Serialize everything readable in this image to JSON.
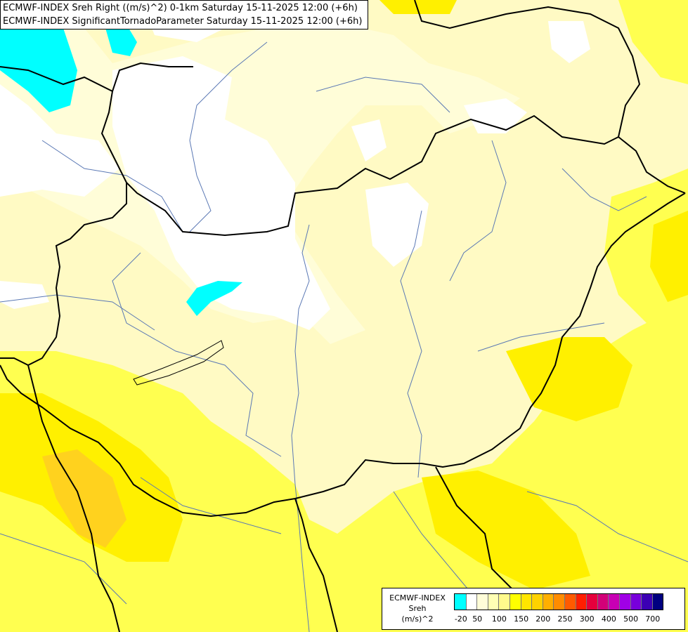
{
  "header": {
    "line1": "ECMWF-INDEX Sreh Right ((m/s)^2) 0-1km Saturday 15-11-2025 12:00 (+6h)",
    "line2": "ECMWF-INDEX SignificantTornadoParameter Saturday 15-11-2025 12:00 (+6h)"
  },
  "legend": {
    "title_line1": "ECMWF-INDEX",
    "title_line2": "Sreh",
    "title_line3": "(m/s)^2",
    "colors": [
      "#00ffff",
      "#ffffff",
      "#fffdd8",
      "#ffffb4",
      "#fffa8c",
      "#ffff00",
      "#ffe600",
      "#ffd200",
      "#ffaf00",
      "#ff8c00",
      "#ff5a00",
      "#ff1e00",
      "#e6003c",
      "#d20078",
      "#c800b4",
      "#a000e6",
      "#7800dc",
      "#3c00b4",
      "#000080"
    ],
    "ticks": [
      {
        "label": "-20",
        "index": 0.5
      },
      {
        "label": "50",
        "index": 2
      },
      {
        "label": "100",
        "index": 4
      },
      {
        "label": "150",
        "index": 6
      },
      {
        "label": "200",
        "index": 8
      },
      {
        "label": "250",
        "index": 10
      },
      {
        "label": "300",
        "index": 12
      },
      {
        "label": "400",
        "index": 14
      },
      {
        "label": "500",
        "index": 16
      },
      {
        "label": "700",
        "index": 18
      }
    ]
  },
  "map_colors": {
    "background": "#fffac4",
    "pale": "#fffdd8",
    "white": "#ffffff",
    "cyan": "#00ffff",
    "yellow": "#ffff50",
    "yellow_strong": "#fff000",
    "orange": "#ffd21e",
    "river": "#5a78b4",
    "border": "#000000"
  }
}
